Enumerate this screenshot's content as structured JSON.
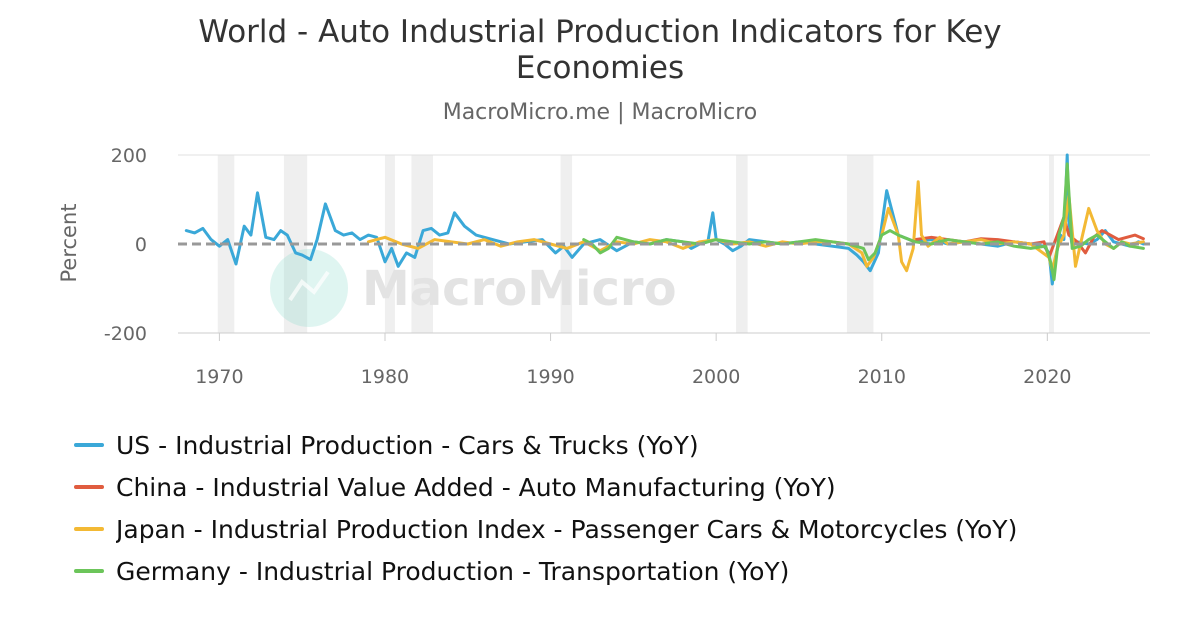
{
  "chart_data": {
    "type": "line",
    "title": [
      "World - Auto Industrial Production Indicators for Key",
      "Economies"
    ],
    "subtitle": "MacroMicro.me | MacroMicro",
    "watermark": "MacroMicro",
    "ylabel": "Percent",
    "xlim": [
      1967.5,
      2026.2
    ],
    "ylim": [
      -200,
      200
    ],
    "x_ticks": [
      1970,
      1980,
      1990,
      2000,
      2010,
      2020
    ],
    "y_ticks": [
      200,
      0,
      -200
    ],
    "grid": true,
    "legend_position": "bottom-left",
    "recessions": [
      [
        1969.9,
        1970.9
      ],
      [
        1973.9,
        1975.3
      ],
      [
        1980.0,
        1980.6
      ],
      [
        1981.6,
        1982.9
      ],
      [
        1990.6,
        1991.3
      ],
      [
        2001.2,
        2001.9
      ],
      [
        2007.9,
        2009.5
      ],
      [
        2020.1,
        2020.4
      ]
    ],
    "series": [
      {
        "name": "US - Industrial Production - Cars & Trucks (YoY)",
        "color": "#3aa8d8",
        "x": [
          1968.0,
          1968.5,
          1969.0,
          1969.5,
          1970.0,
          1970.5,
          1971.0,
          1971.5,
          1971.9,
          1972.3,
          1972.8,
          1973.3,
          1973.7,
          1974.1,
          1974.6,
          1975.0,
          1975.5,
          1975.9,
          1976.4,
          1977.0,
          1977.5,
          1978.0,
          1978.5,
          1979.0,
          1979.5,
          1980.0,
          1980.4,
          1980.8,
          1981.3,
          1981.8,
          1982.3,
          1982.8,
          1983.3,
          1983.8,
          1984.2,
          1984.8,
          1985.5,
          1986.5,
          1987.5,
          1988.5,
          1989.5,
          1990.3,
          1990.8,
          1991.3,
          1992.0,
          1993.0,
          1994.0,
          1995.0,
          1996.0,
          1997.0,
          1998.0,
          1998.5,
          1999.0,
          1999.5,
          1999.8,
          2000.0,
          2000.5,
          2001.0,
          2001.5,
          2002.0,
          2003.0,
          2004.0,
          2005.0,
          2006.0,
          2007.0,
          2008.0,
          2008.5,
          2008.9,
          2009.3,
          2009.8,
          2010.0,
          2010.3,
          2011.0,
          2012.0,
          2013.0,
          2014.0,
          2015.0,
          2016.0,
          2017.0,
          2018.0,
          2019.0,
          2019.8,
          2020.1,
          2020.3,
          2020.5,
          2020.8,
          2021.0,
          2021.2,
          2021.3,
          2021.5,
          2021.8,
          2022.5,
          2023.0,
          2023.5,
          2024.0,
          2024.5,
          2025.0,
          2025.5,
          2025.8
        ],
        "values": [
          30,
          25,
          35,
          10,
          -5,
          10,
          -45,
          40,
          20,
          115,
          15,
          10,
          30,
          20,
          -20,
          -25,
          -35,
          10,
          90,
          30,
          20,
          25,
          10,
          20,
          15,
          -40,
          -10,
          -50,
          -20,
          -30,
          30,
          35,
          20,
          25,
          70,
          40,
          20,
          10,
          0,
          5,
          10,
          -20,
          -5,
          -30,
          0,
          10,
          -15,
          5,
          0,
          10,
          5,
          -10,
          0,
          5,
          70,
          10,
          0,
          -15,
          -5,
          10,
          5,
          0,
          5,
          0,
          -5,
          -10,
          -25,
          -40,
          -60,
          -20,
          40,
          120,
          20,
          5,
          10,
          0,
          5,
          0,
          -5,
          5,
          0,
          -5,
          -20,
          -90,
          -30,
          20,
          10,
          200,
          50,
          -5,
          5,
          0,
          10,
          30,
          5,
          0,
          -5,
          5,
          0
        ]
      },
      {
        "name": "China - Industrial Value Added - Auto Manufacturing (YoY)",
        "color": "#e05c3f",
        "x": [
          2012.0,
          2013.0,
          2014.0,
          2015.0,
          2016.0,
          2017.0,
          2018.0,
          2019.0,
          2019.8,
          2020.1,
          2020.3,
          2020.6,
          2021.0,
          2021.3,
          2021.8,
          2022.3,
          2022.8,
          2023.3,
          2023.8,
          2024.3,
          2024.8,
          2025.3,
          2025.8
        ],
        "values": [
          10,
          15,
          10,
          5,
          12,
          10,
          5,
          0,
          5,
          -30,
          -10,
          20,
          60,
          20,
          5,
          -20,
          15,
          30,
          20,
          10,
          15,
          20,
          12
        ]
      },
      {
        "name": "Japan - Industrial Production Index - Passenger Cars & Motorcycles (YoY)",
        "color": "#f3b934",
        "x": [
          1979.0,
          1980.0,
          1981.0,
          1982.0,
          1983.0,
          1984.0,
          1985.0,
          1986.0,
          1987.0,
          1988.0,
          1989.0,
          1990.0,
          1991.0,
          1992.0,
          1993.0,
          1994.0,
          1995.0,
          1996.0,
          1997.0,
          1998.0,
          1999.0,
          2000.0,
          2001.0,
          2002.0,
          2003.0,
          2004.0,
          2005.0,
          2006.0,
          2007.0,
          2008.0,
          2008.8,
          2009.1,
          2009.5,
          2010.0,
          2010.4,
          2011.0,
          2011.2,
          2011.5,
          2011.9,
          2012.2,
          2012.4,
          2012.8,
          2013.5,
          2014.0,
          2015.0,
          2016.0,
          2017.0,
          2018.0,
          2019.0,
          2020.1,
          2020.3,
          2020.6,
          2021.0,
          2021.3,
          2021.7,
          2022.0,
          2022.5,
          2023.0,
          2023.5,
          2024.0,
          2024.5,
          2025.0,
          2025.8
        ],
        "values": [
          5,
          15,
          0,
          -10,
          10,
          5,
          0,
          10,
          -5,
          5,
          10,
          0,
          -10,
          5,
          -15,
          5,
          0,
          10,
          5,
          -10,
          5,
          10,
          0,
          5,
          -5,
          5,
          0,
          5,
          5,
          0,
          -20,
          -50,
          -30,
          20,
          80,
          20,
          -40,
          -60,
          -10,
          140,
          20,
          -5,
          15,
          0,
          5,
          10,
          0,
          5,
          0,
          -30,
          -60,
          -10,
          20,
          110,
          -50,
          0,
          80,
          30,
          0,
          -10,
          5,
          0,
          5
        ]
      },
      {
        "name": "Germany - Industrial Production - Transportation (YoY)",
        "color": "#6cc55a",
        "x": [
          1992.0,
          1992.5,
          1993.0,
          1993.5,
          1994.0,
          1995.0,
          1996.0,
          1997.0,
          1998.0,
          1999.0,
          2000.0,
          2001.0,
          2002.0,
          2003.0,
          2004.0,
          2005.0,
          2006.0,
          2007.0,
          2008.0,
          2008.9,
          2009.2,
          2009.6,
          2010.0,
          2010.5,
          2011.0,
          2012.0,
          2013.0,
          2014.0,
          2015.0,
          2016.0,
          2017.0,
          2018.0,
          2019.0,
          2019.9,
          2020.2,
          2020.4,
          2020.7,
          2021.0,
          2021.2,
          2021.5,
          2022.0,
          2022.5,
          2023.0,
          2023.5,
          2024.0,
          2024.5,
          2025.0,
          2025.8
        ],
        "values": [
          10,
          0,
          -20,
          -10,
          15,
          5,
          0,
          10,
          5,
          0,
          10,
          5,
          0,
          5,
          0,
          5,
          10,
          5,
          0,
          -10,
          -35,
          -20,
          20,
          30,
          20,
          5,
          0,
          10,
          5,
          0,
          5,
          -5,
          -10,
          -5,
          -40,
          -80,
          20,
          60,
          180,
          -10,
          -5,
          10,
          20,
          5,
          -10,
          5,
          -5,
          -10
        ]
      }
    ]
  }
}
